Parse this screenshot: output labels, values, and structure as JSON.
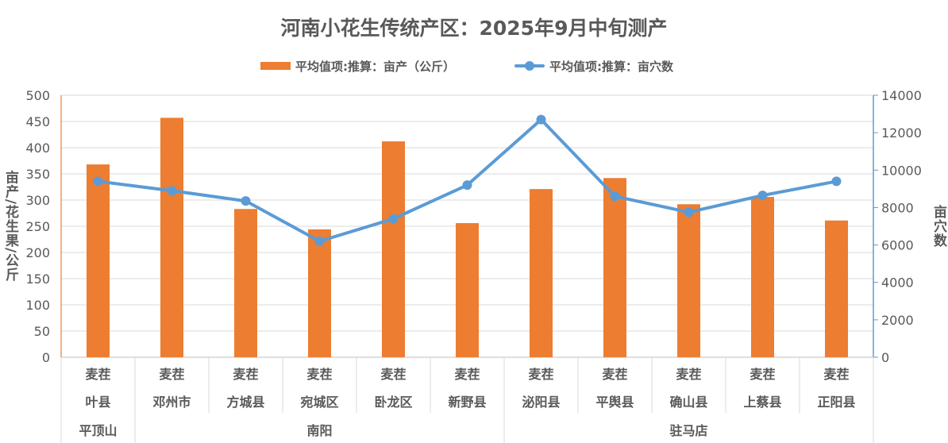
{
  "chart_data": {
    "type": "bar+line",
    "title": "河南小花生传统产区：2025年9月中旬测产",
    "categories": [
      "叶县",
      "邓州市",
      "方城县",
      "宛城区",
      "卧龙区",
      "新野县",
      "泌阳县",
      "平舆县",
      "确山县",
      "上蔡县",
      "正阳县"
    ],
    "variety_labels": [
      "麦茬",
      "麦茬",
      "麦茬",
      "麦茬",
      "麦茬",
      "麦茬",
      "麦茬",
      "麦茬",
      "麦茬",
      "麦茬",
      "麦茬"
    ],
    "region_groups": [
      {
        "name": "平顶山",
        "count": 1
      },
      {
        "name": "南阳",
        "count": 5
      },
      {
        "name": "驻马店",
        "count": 5
      }
    ],
    "series": [
      {
        "name": "平均值项:推算：亩产（公斤）",
        "type": "bar",
        "axis": "left",
        "color": "#ed7d31",
        "values": [
          368,
          457,
          283,
          244,
          412,
          256,
          321,
          342,
          292,
          306,
          261
        ]
      },
      {
        "name": "平均值项:推算：亩穴数",
        "type": "line",
        "axis": "right",
        "color": "#5b9bd5",
        "values": [
          9400,
          8900,
          8350,
          6200,
          7400,
          9200,
          12700,
          8600,
          7750,
          8650,
          9400
        ]
      }
    ],
    "ylabel": "亩产/花生果/公斤",
    "ylim": [
      0,
      500
    ],
    "yticks": [
      "0",
      "50",
      "100",
      "150",
      "200",
      "250",
      "300",
      "350",
      "400",
      "450",
      "500"
    ],
    "y2label": "亩穴数",
    "y2lim": [
      0,
      14000
    ],
    "y2ticks": [
      "0",
      "2000",
      "4000",
      "6000",
      "8000",
      "10000",
      "12000",
      "14000"
    ],
    "grid": true,
    "legend_position": "top"
  }
}
